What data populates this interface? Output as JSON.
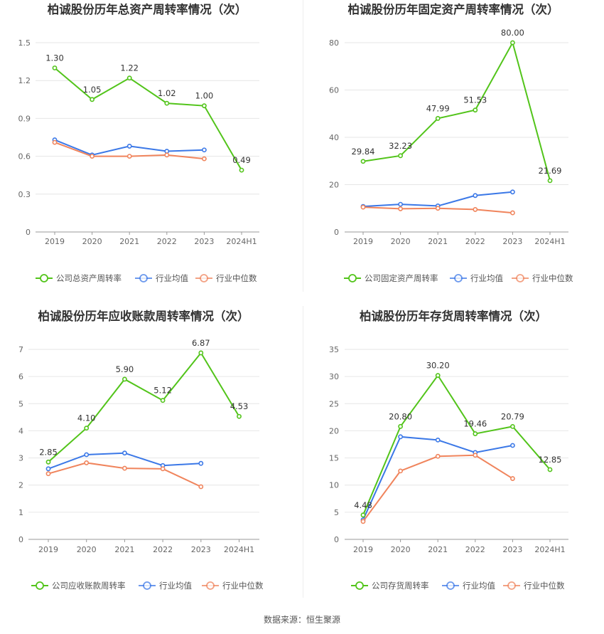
{
  "source": "数据来源：恒生聚源",
  "colors": {
    "company": "#52c41a",
    "avg": "#3b78e7",
    "median": "#f0845c",
    "grid": "#e6e6e6",
    "axis": "#999999"
  },
  "legend": {
    "avg": "行业均值",
    "median": "行业中位数"
  },
  "chart_data": [
    {
      "type": "line",
      "title": "柏诚股份历年总资产周转率情况（次）",
      "categories": [
        "2019",
        "2020",
        "2021",
        "2022",
        "2023",
        "2024H1"
      ],
      "ylim": [
        0,
        1.5
      ],
      "yticks": [
        "0",
        "0.3",
        "0.6",
        "0.9",
        "1.2",
        "1.5"
      ],
      "series": [
        {
          "name": "公司总资产周转率",
          "key": "company",
          "values": [
            1.3,
            1.05,
            1.22,
            1.02,
            1.0,
            0.49
          ],
          "labels": [
            "1.30",
            "1.05",
            "1.22",
            "1.02",
            "1.00",
            "0.49"
          ]
        },
        {
          "name": "行业均值",
          "key": "avg",
          "values": [
            0.73,
            0.61,
            0.68,
            0.64,
            0.65,
            null
          ]
        },
        {
          "name": "行业中位数",
          "key": "median",
          "values": [
            0.71,
            0.6,
            0.6,
            0.61,
            0.58,
            null
          ]
        }
      ]
    },
    {
      "type": "line",
      "title": "柏诚股份历年固定资产周转率情况（次）",
      "categories": [
        "2019",
        "2020",
        "2021",
        "2022",
        "2023",
        "2024H1"
      ],
      "ylim": [
        0,
        80
      ],
      "yticks": [
        "0",
        "20",
        "40",
        "60",
        "80"
      ],
      "series": [
        {
          "name": "公司固定资产周转率",
          "key": "company",
          "values": [
            29.84,
            32.23,
            47.99,
            51.53,
            80.0,
            21.69
          ],
          "labels": [
            "29.84",
            "32.23",
            "47.99",
            "51.53",
            "80.00",
            "21.69"
          ]
        },
        {
          "name": "行业均值",
          "key": "avg",
          "values": [
            10.8,
            11.7,
            11.0,
            15.4,
            16.9,
            null
          ]
        },
        {
          "name": "行业中位数",
          "key": "median",
          "values": [
            10.5,
            9.8,
            10.0,
            9.5,
            8.1,
            null
          ]
        }
      ]
    },
    {
      "type": "line",
      "title": "柏诚股份历年应收账款周转率情况（次）",
      "categories": [
        "2019",
        "2020",
        "2021",
        "2022",
        "2023",
        "2024H1"
      ],
      "ylim": [
        0,
        7
      ],
      "yticks": [
        "0",
        "1",
        "2",
        "3",
        "4",
        "5",
        "6",
        "7"
      ],
      "series": [
        {
          "name": "公司应收账款周转率",
          "key": "company",
          "values": [
            2.85,
            4.1,
            5.9,
            5.12,
            6.87,
            4.53
          ],
          "labels": [
            "2.85",
            "4.10",
            "5.90",
            "5.12",
            "6.87",
            "4.53"
          ]
        },
        {
          "name": "行业均值",
          "key": "avg",
          "values": [
            2.6,
            3.12,
            3.18,
            2.72,
            2.8,
            null
          ]
        },
        {
          "name": "行业中位数",
          "key": "median",
          "values": [
            2.42,
            2.82,
            2.62,
            2.6,
            1.94,
            null
          ]
        }
      ]
    },
    {
      "type": "line",
      "title": "柏诚股份历年存货周转率情况（次）",
      "categories": [
        "2019",
        "2020",
        "2021",
        "2022",
        "2023",
        "2024H1"
      ],
      "ylim": [
        0,
        35
      ],
      "yticks": [
        "0",
        "5",
        "10",
        "15",
        "20",
        "25",
        "30",
        "35"
      ],
      "series": [
        {
          "name": "公司存货周转率",
          "key": "company",
          "values": [
            4.48,
            20.8,
            30.2,
            19.46,
            20.79,
            12.85
          ],
          "labels": [
            "4.48",
            "20.80",
            "30.20",
            "19.46",
            "20.79",
            "12.85"
          ]
        },
        {
          "name": "行业均值",
          "key": "avg",
          "values": [
            3.6,
            18.9,
            18.3,
            16.0,
            17.3,
            null
          ]
        },
        {
          "name": "行业中位数",
          "key": "median",
          "values": [
            3.3,
            12.6,
            15.3,
            15.5,
            11.2,
            null
          ]
        }
      ]
    }
  ]
}
